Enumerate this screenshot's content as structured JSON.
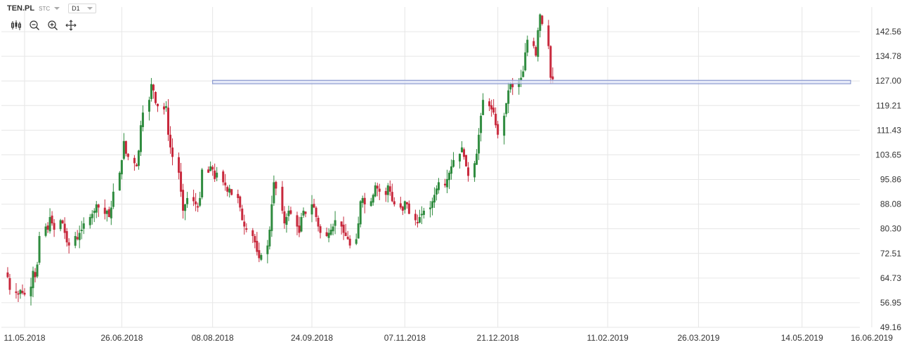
{
  "header": {
    "symbol": "TEN.PL",
    "market": "STC",
    "timeframe": "D1"
  },
  "toolbar": {
    "icons": [
      "candles-icon",
      "zoom-out-icon",
      "zoom-in-icon",
      "move-icon"
    ]
  },
  "colors": {
    "up": "#2e8b3e",
    "down": "#c8283c",
    "grid": "#e6e6e6",
    "level_fill": "#dfe4f7",
    "level_stroke": "#7b8cc9"
  },
  "chart_data": {
    "type": "candlestick",
    "title": "",
    "xlabel": "",
    "ylabel": "",
    "ylim": [
      49.16,
      150.34
    ],
    "y_ticks": [
      "142.56",
      "134.78",
      "127.00",
      "119.21",
      "111.43",
      "103.65",
      "95.86",
      "88.08",
      "80.30",
      "72.51",
      "64.73",
      "56.95",
      "49.16"
    ],
    "x_ticks": [
      "11.05.2018",
      "26.06.2018",
      "08.08.2018",
      "24.09.2018",
      "07.11.2018",
      "21.12.2018",
      "11.02.2019",
      "26.03.2019",
      "14.05.2019",
      "16.06.2019"
    ],
    "horizontal_zone": {
      "from": 126.1,
      "to": 127.2,
      "start": "08.08.2018",
      "end": "06.06.2019"
    },
    "grid": true,
    "closes": [
      65.0,
      61.0,
      60.0,
      59.5,
      61.0,
      60.0,
      59.5,
      62.0,
      67.0,
      65.0,
      69.0,
      78.0,
      81.0,
      80.0,
      84.0,
      82.0,
      80.0,
      83.0,
      82.0,
      79.0,
      76.0,
      75.0,
      78.0,
      77.0,
      79.0,
      80.0,
      82.0,
      84.0,
      85.0,
      86.0,
      88.0,
      87.0,
      85.0,
      86.0,
      84.0,
      87.0,
      92.0,
      98.0,
      102.0,
      108.0,
      104.0,
      103.0,
      101.0,
      100.0,
      105.0,
      113.0,
      117.0,
      121.0,
      126.0,
      124.0,
      120.0,
      119.0,
      118.0,
      119.0,
      110.0,
      106.0,
      103.0,
      98.0,
      92.0,
      86.0,
      88.0,
      90.0,
      89.0,
      88.0,
      87.0,
      90.0,
      99.0,
      98.0,
      100.0,
      99.0,
      96.0,
      98.0,
      95.0,
      94.0,
      92.0,
      93.0,
      91.0,
      90.0,
      87.0,
      83.0,
      81.0,
      80.0,
      78.0,
      76.0,
      73.0,
      71.0,
      72.0,
      75.0,
      80.0,
      88.0,
      95.0,
      93.0,
      86.0,
      82.0,
      84.0,
      86.0,
      85.0,
      81.0,
      79.0,
      84.0,
      86.0,
      85.0,
      88.0,
      87.0,
      84.0,
      81.0,
      79.0,
      78.0,
      79.0,
      80.0,
      81.0,
      83.0,
      81.0,
      79.0,
      78.0,
      77.0,
      75.0,
      77.0,
      82.0,
      89.0,
      90.0,
      88.0,
      89.0,
      91.0,
      94.0,
      93.0,
      92.0,
      91.0,
      94.0,
      92.0,
      89.0,
      88.0,
      87.0,
      86.0,
      89.0,
      88.0,
      85.0,
      83.0,
      82.0,
      84.0,
      85.0,
      86.0,
      87.0,
      89.0,
      91.0,
      93.0,
      95.0,
      94.0,
      96.0,
      98.0,
      100.0,
      102.0,
      104.0,
      106.0,
      103.0,
      100.0,
      97.0,
      101.0,
      104.0,
      110.0,
      116.0,
      121.0,
      119.0,
      118.0,
      117.0,
      113.0,
      110.0,
      116.0,
      120.0,
      124.0,
      126.0,
      125.0,
      127.0,
      128.0,
      130.0,
      136.0,
      140.0,
      138.0,
      135.0,
      143.0,
      148.0,
      145.0,
      138.0,
      128.0,
      127.5
    ],
    "start_date": "03.05.2018"
  }
}
